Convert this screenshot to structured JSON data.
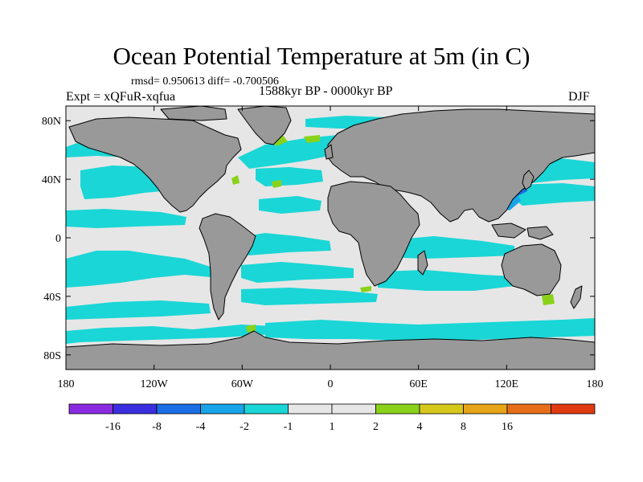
{
  "title": "Ocean Potential Temperature at 5m (in C)",
  "stats_text": "rmsd= 0.950613 diff= -0.700506",
  "experiment_label": "Expt = xQFuR-xqfua",
  "period_label": "1588kyr BP - 0000kyr BP",
  "season_label": "DJF",
  "map": {
    "projection": "cylindrical equidistant",
    "lon_range": [
      -180,
      180
    ],
    "lat_range": [
      -90,
      90
    ],
    "land_color": "#999999",
    "ocean_default_color": "#e6e6e6",
    "y_ticks": [
      {
        "value": 80,
        "label": "80N"
      },
      {
        "value": 40,
        "label": "40N"
      },
      {
        "value": 0,
        "label": "0"
      },
      {
        "value": -40,
        "label": "40S"
      },
      {
        "value": -80,
        "label": "80S"
      }
    ],
    "x_ticks": [
      {
        "value": -180,
        "label": "180"
      },
      {
        "value": -120,
        "label": "120W"
      },
      {
        "value": -60,
        "label": "60W"
      },
      {
        "value": 0,
        "label": "0"
      },
      {
        "value": 60,
        "label": "60E"
      },
      {
        "value": 120,
        "label": "120E"
      },
      {
        "value": 180,
        "label": "180"
      }
    ]
  },
  "colorbar": {
    "colors": [
      "#8a2be2",
      "#3a2ee0",
      "#1a6ee6",
      "#18a4e8",
      "#1ad6d6",
      "#e6e6e6",
      "#e6e6e6",
      "#8ad21a",
      "#d6c81a",
      "#e6a418",
      "#e66e18",
      "#e03a10"
    ],
    "labels": [
      "-16",
      "-8",
      "-4",
      "-2",
      "-1",
      "1",
      "2",
      "4",
      "8",
      "16"
    ]
  }
}
